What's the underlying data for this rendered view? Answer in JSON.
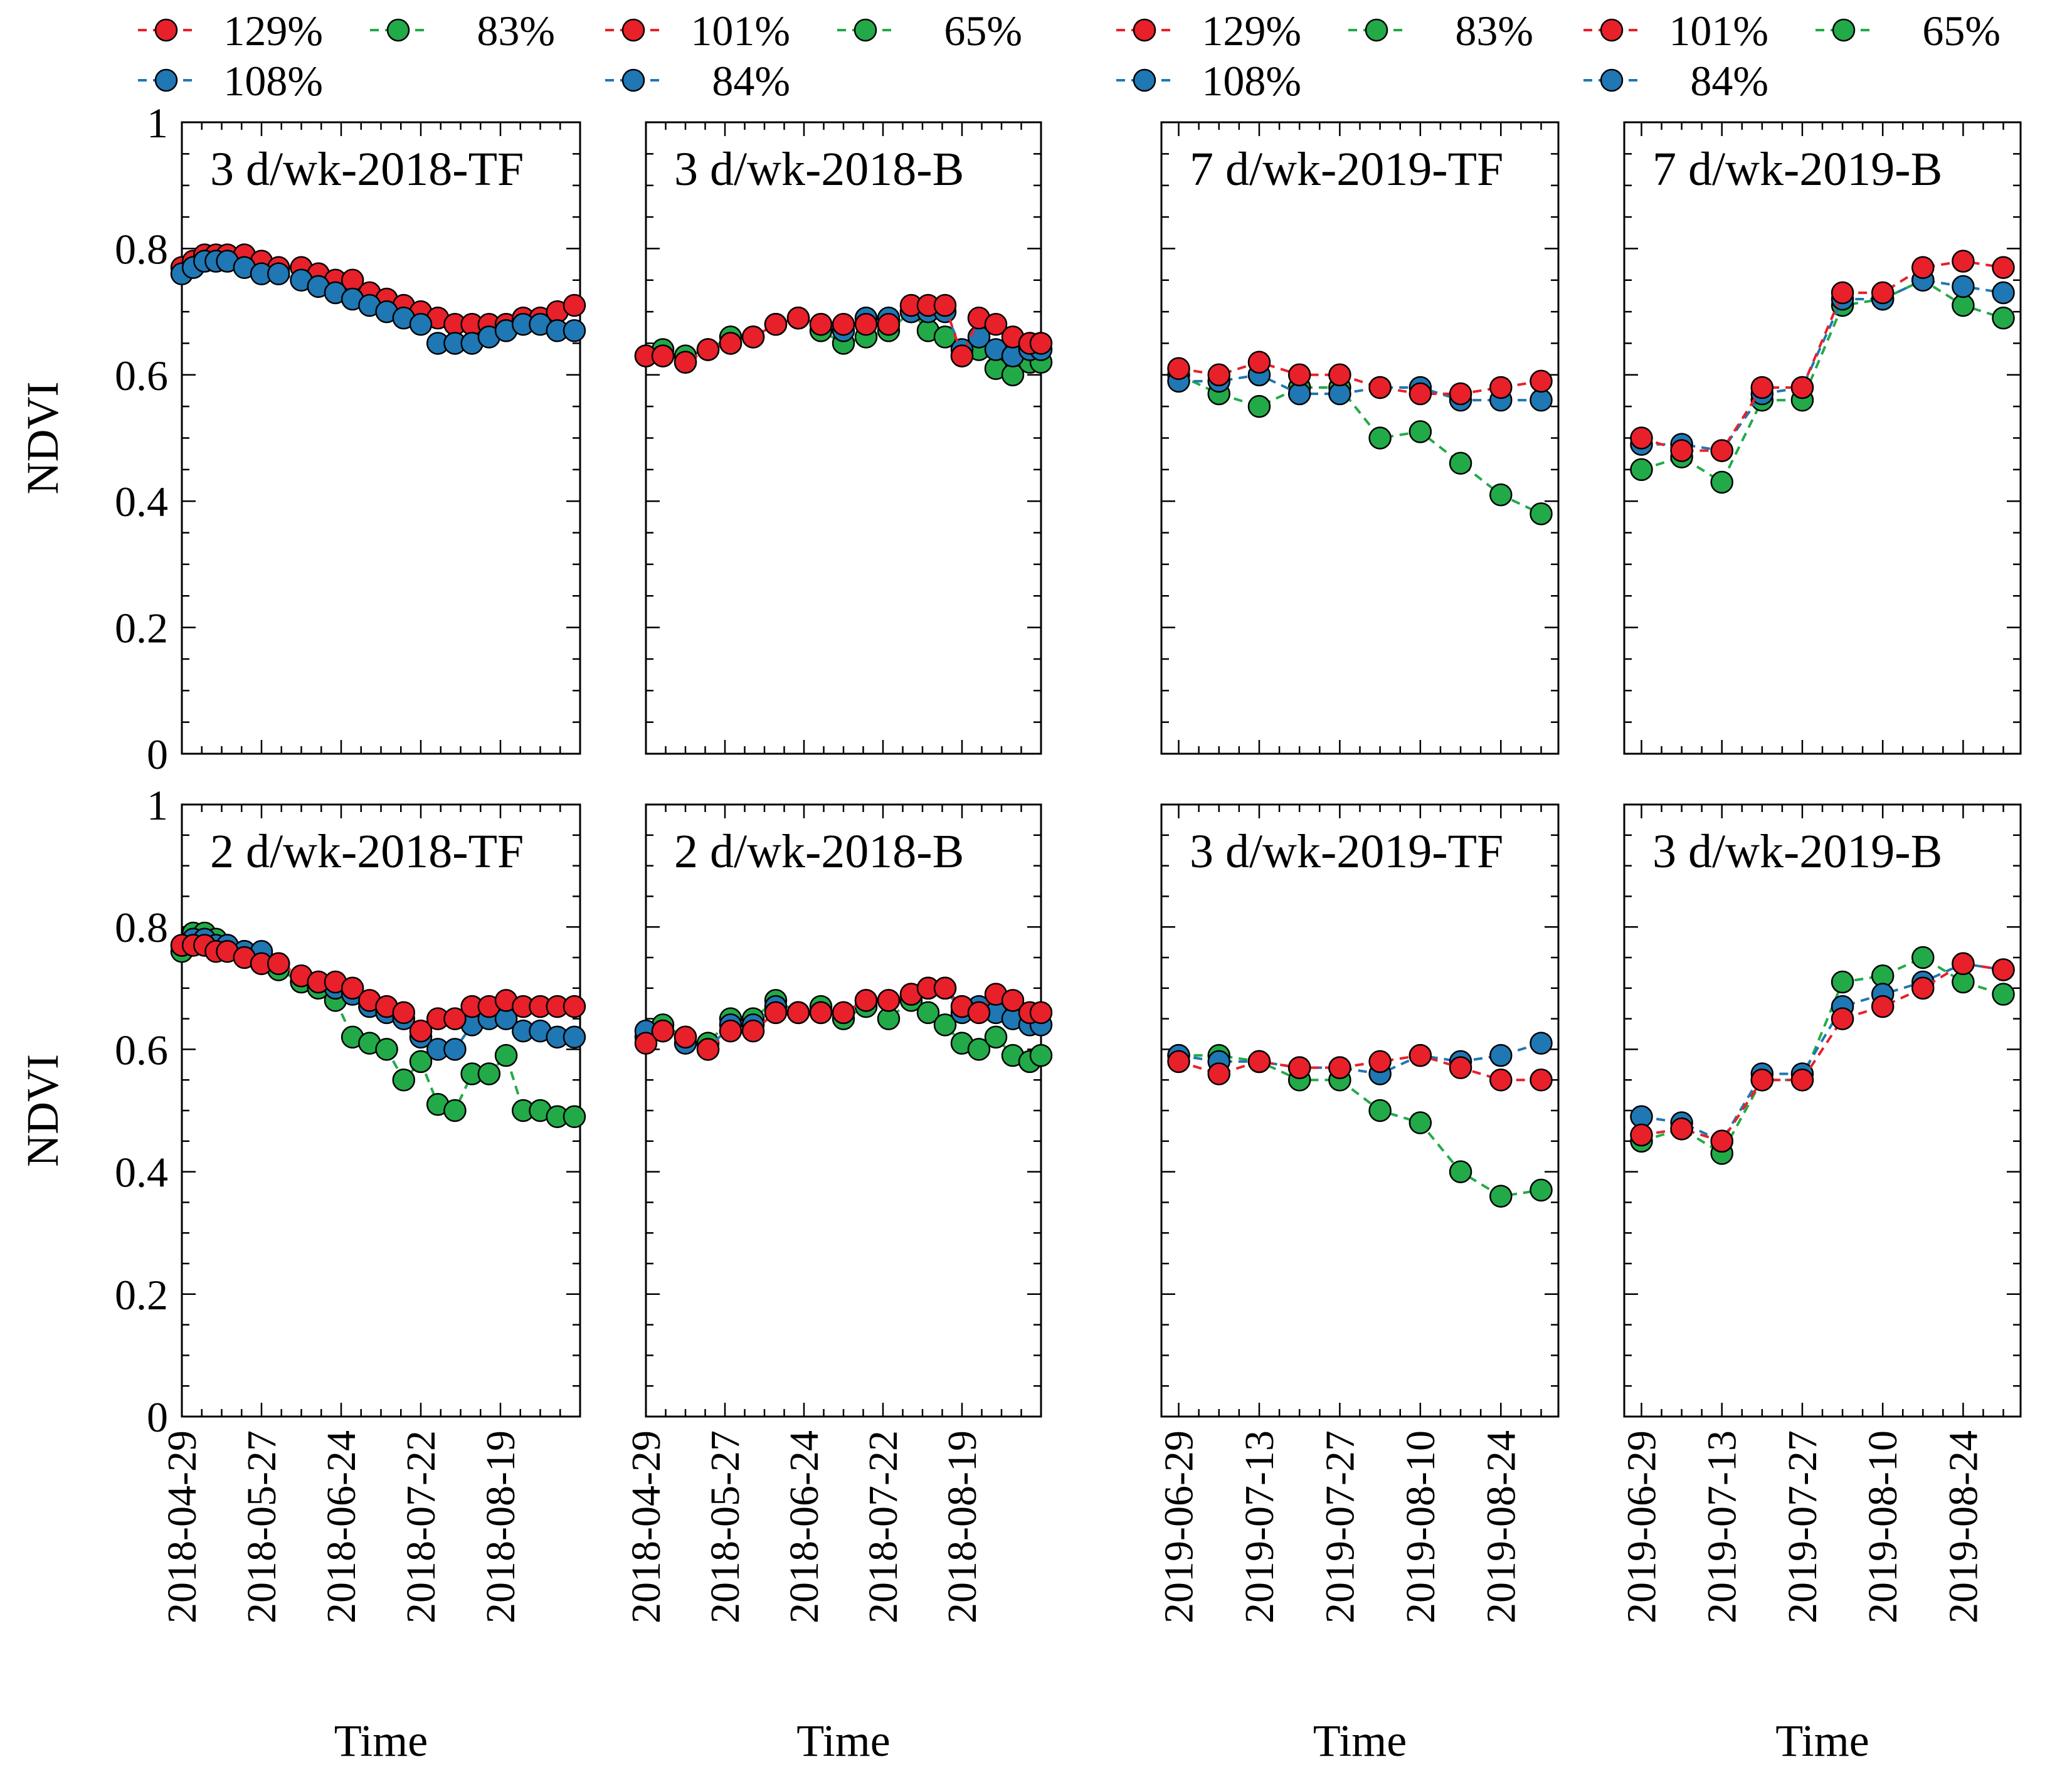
{
  "colors": {
    "red": "#e8202a",
    "green": "#22aa48",
    "blue": "#1f77b4",
    "axis": "#000000"
  },
  "legend_groups": [
    {
      "entries": [
        {
          "label": "129%",
          "color": "red"
        },
        {
          "label": "83%",
          "color": "green"
        },
        {
          "label": "101%",
          "color": "red"
        },
        {
          "label": "65%",
          "color": "green"
        },
        {
          "label": "108%",
          "color": "blue"
        },
        {
          "label": "84%",
          "color": "blue"
        }
      ]
    },
    {
      "entries": [
        {
          "label": "129%",
          "color": "red"
        },
        {
          "label": "83%",
          "color": "green"
        },
        {
          "label": "101%",
          "color": "red"
        },
        {
          "label": "65%",
          "color": "green"
        },
        {
          "label": "108%",
          "color": "blue"
        },
        {
          "label": "84%",
          "color": "blue"
        }
      ]
    }
  ],
  "chart_data": [
    {
      "type": "line",
      "title": "3 d/wk-2018-TF",
      "ylabel": "NDVI",
      "xlabel": "",
      "ylim": [
        0,
        1
      ],
      "yticks": [
        0,
        0.2,
        0.4,
        0.6,
        0.8,
        1
      ],
      "ytick_labels": [
        "0",
        "0.2",
        "0.4",
        "0.6",
        "0.8",
        "1"
      ],
      "xlim": [
        0,
        140
      ],
      "xticks": [
        0,
        28,
        56,
        84,
        112
      ],
      "xtick_labels": [
        "2018-04-29",
        "2018-05-27",
        "2018-06-24",
        "2018-07-22",
        "2018-08-19"
      ],
      "x": [
        0,
        4,
        8,
        12,
        16,
        22,
        28,
        34,
        42,
        48,
        54,
        60,
        66,
        72,
        78,
        84,
        90,
        96,
        102,
        108,
        114,
        120,
        126,
        132,
        138
      ],
      "series": [
        {
          "name": "129%",
          "color": "red",
          "values": [
            0.77,
            0.78,
            0.79,
            0.79,
            0.79,
            0.79,
            0.78,
            0.77,
            0.77,
            0.76,
            0.75,
            0.75,
            0.73,
            0.72,
            0.71,
            0.7,
            0.69,
            0.68,
            0.68,
            0.68,
            0.68,
            0.69,
            0.69,
            0.7,
            0.71
          ]
        },
        {
          "name": "108%",
          "color": "blue",
          "values": [
            0.76,
            0.77,
            0.78,
            0.78,
            0.78,
            0.77,
            0.76,
            0.76,
            0.75,
            0.74,
            0.73,
            0.72,
            0.71,
            0.7,
            0.69,
            0.68,
            0.65,
            0.65,
            0.65,
            0.66,
            0.67,
            0.68,
            0.68,
            0.67,
            0.67
          ]
        }
      ]
    },
    {
      "type": "line",
      "title": "3 d/wk-2018-B",
      "ylabel": "",
      "xlabel": "",
      "ylim": [
        0,
        1
      ],
      "yticks": [
        0,
        0.2,
        0.4,
        0.6,
        0.8,
        1
      ],
      "ytick_labels": [],
      "xlim": [
        0,
        140
      ],
      "xticks": [
        0,
        28,
        56,
        84,
        112
      ],
      "xtick_labels": [
        "2018-04-29",
        "2018-05-27",
        "2018-06-24",
        "2018-07-22",
        "2018-08-19"
      ],
      "x": [
        0,
        6,
        14,
        22,
        30,
        38,
        46,
        54,
        62,
        70,
        78,
        86,
        94,
        100,
        106,
        112,
        118,
        124,
        130,
        136,
        140
      ],
      "series": [
        {
          "name": "65%",
          "color": "green",
          "values": [
            0.63,
            0.64,
            0.63,
            0.64,
            0.66,
            0.66,
            0.68,
            0.69,
            0.67,
            0.65,
            0.66,
            0.67,
            0.7,
            0.67,
            0.66,
            0.63,
            0.64,
            0.61,
            0.6,
            0.62,
            0.62
          ]
        },
        {
          "name": "84%",
          "color": "blue",
          "values": [
            0.63,
            0.63,
            0.62,
            0.64,
            0.65,
            0.66,
            0.68,
            0.69,
            0.68,
            0.67,
            0.69,
            0.69,
            0.7,
            0.7,
            0.7,
            0.64,
            0.66,
            0.64,
            0.63,
            0.64,
            0.64
          ]
        },
        {
          "name": "101%",
          "color": "red",
          "values": [
            0.63,
            0.63,
            0.62,
            0.64,
            0.65,
            0.66,
            0.68,
            0.69,
            0.68,
            0.68,
            0.68,
            0.68,
            0.71,
            0.71,
            0.71,
            0.63,
            0.69,
            0.68,
            0.66,
            0.65,
            0.65
          ]
        }
      ]
    },
    {
      "type": "line",
      "title": "7 d/wk-2019-TF",
      "ylabel": "",
      "xlabel": "",
      "ylim": [
        0,
        1
      ],
      "yticks": [
        0,
        0.2,
        0.4,
        0.6,
        0.8,
        1
      ],
      "ytick_labels": [],
      "xlim": [
        -3,
        66
      ],
      "xticks": [
        0,
        14,
        28,
        42,
        56
      ],
      "xtick_labels": [
        "2019-06-29",
        "2019-07-13",
        "2019-07-27",
        "2019-08-10",
        "2019-08-24"
      ],
      "x": [
        0,
        7,
        14,
        21,
        28,
        35,
        42,
        49,
        56,
        63
      ],
      "series": [
        {
          "name": "83%",
          "color": "green",
          "values": [
            0.6,
            0.57,
            0.55,
            0.58,
            0.58,
            0.5,
            0.51,
            0.46,
            0.41,
            0.38
          ]
        },
        {
          "name": "108%",
          "color": "blue",
          "values": [
            0.59,
            0.59,
            0.6,
            0.57,
            0.57,
            0.58,
            0.58,
            0.56,
            0.56,
            0.56
          ]
        },
        {
          "name": "129%",
          "color": "red",
          "values": [
            0.61,
            0.6,
            0.62,
            0.6,
            0.6,
            0.58,
            0.57,
            0.57,
            0.58,
            0.59
          ]
        }
      ]
    },
    {
      "type": "line",
      "title": "7 d/wk-2019-B",
      "ylabel": "",
      "xlabel": "",
      "ylim": [
        0,
        1
      ],
      "yticks": [
        0,
        0.2,
        0.4,
        0.6,
        0.8,
        1
      ],
      "ytick_labels": [],
      "xlim": [
        -3,
        66
      ],
      "xticks": [
        0,
        14,
        28,
        42,
        56
      ],
      "xtick_labels": [
        "2019-06-29",
        "2019-07-13",
        "2019-07-27",
        "2019-08-10",
        "2019-08-24"
      ],
      "x": [
        0,
        7,
        14,
        21,
        28,
        35,
        42,
        49,
        56,
        63
      ],
      "series": [
        {
          "name": "65%",
          "color": "green",
          "values": [
            0.45,
            0.47,
            0.43,
            0.56,
            0.56,
            0.71,
            0.72,
            0.75,
            0.71,
            0.69
          ]
        },
        {
          "name": "84%",
          "color": "blue",
          "values": [
            0.49,
            0.49,
            0.48,
            0.57,
            0.58,
            0.72,
            0.72,
            0.75,
            0.74,
            0.73
          ]
        },
        {
          "name": "101%",
          "color": "red",
          "values": [
            0.5,
            0.48,
            0.48,
            0.58,
            0.58,
            0.73,
            0.73,
            0.77,
            0.78,
            0.77
          ]
        }
      ]
    },
    {
      "type": "line",
      "title": "2 d/wk-2018-TF",
      "ylabel": "NDVI",
      "xlabel": "Time",
      "ylim": [
        0,
        1
      ],
      "yticks": [
        0,
        0.2,
        0.4,
        0.6,
        0.8,
        1
      ],
      "ytick_labels": [
        "0",
        "0.2",
        "0.4",
        "0.6",
        "0.8",
        "1"
      ],
      "xlim": [
        0,
        140
      ],
      "xticks": [
        0,
        28,
        56,
        84,
        112
      ],
      "xtick_labels": [
        "2018-04-29",
        "2018-05-27",
        "2018-06-24",
        "2018-07-22",
        "2018-08-19"
      ],
      "x": [
        0,
        4,
        8,
        12,
        16,
        22,
        28,
        34,
        42,
        48,
        54,
        60,
        66,
        72,
        78,
        84,
        90,
        96,
        102,
        108,
        114,
        120,
        126,
        132,
        138
      ],
      "series": [
        {
          "name": "83%",
          "color": "green",
          "values": [
            0.76,
            0.79,
            0.79,
            0.78,
            0.77,
            0.76,
            0.74,
            0.73,
            0.71,
            0.7,
            0.68,
            0.62,
            0.61,
            0.6,
            0.55,
            0.58,
            0.51,
            0.5,
            0.56,
            0.56,
            0.59,
            0.5,
            0.5,
            0.49,
            0.49
          ]
        },
        {
          "name": "108%",
          "color": "blue",
          "values": [
            0.77,
            0.78,
            0.78,
            0.77,
            0.77,
            0.76,
            0.76,
            0.74,
            0.72,
            0.71,
            0.7,
            0.69,
            0.67,
            0.66,
            0.65,
            0.62,
            0.6,
            0.6,
            0.64,
            0.65,
            0.65,
            0.63,
            0.63,
            0.62,
            0.62
          ]
        },
        {
          "name": "129%",
          "color": "red",
          "values": [
            0.77,
            0.77,
            0.77,
            0.76,
            0.76,
            0.75,
            0.74,
            0.74,
            0.72,
            0.71,
            0.71,
            0.7,
            0.68,
            0.67,
            0.66,
            0.63,
            0.65,
            0.65,
            0.67,
            0.67,
            0.68,
            0.67,
            0.67,
            0.67,
            0.67
          ]
        }
      ]
    },
    {
      "type": "line",
      "title": "2 d/wk-2018-B",
      "ylabel": "",
      "xlabel": "Time",
      "ylim": [
        0,
        1
      ],
      "yticks": [
        0,
        0.2,
        0.4,
        0.6,
        0.8,
        1
      ],
      "ytick_labels": [],
      "xlim": [
        0,
        140
      ],
      "xticks": [
        0,
        28,
        56,
        84,
        112
      ],
      "xtick_labels": [
        "2018-04-29",
        "2018-05-27",
        "2018-06-24",
        "2018-07-22",
        "2018-08-19"
      ],
      "x": [
        0,
        6,
        14,
        22,
        30,
        38,
        46,
        54,
        62,
        70,
        78,
        86,
        94,
        100,
        106,
        112,
        118,
        124,
        130,
        136,
        140
      ],
      "series": [
        {
          "name": "65%",
          "color": "green",
          "values": [
            0.62,
            0.64,
            0.62,
            0.61,
            0.65,
            0.65,
            0.68,
            0.66,
            0.67,
            0.65,
            0.67,
            0.65,
            0.68,
            0.66,
            0.64,
            0.61,
            0.6,
            0.62,
            0.59,
            0.58,
            0.59
          ]
        },
        {
          "name": "84%",
          "color": "blue",
          "values": [
            0.63,
            0.63,
            0.61,
            0.6,
            0.64,
            0.64,
            0.67,
            0.66,
            0.66,
            0.66,
            0.68,
            0.68,
            0.69,
            0.7,
            0.7,
            0.66,
            0.67,
            0.66,
            0.65,
            0.64,
            0.64
          ]
        },
        {
          "name": "101%",
          "color": "red",
          "values": [
            0.61,
            0.63,
            0.62,
            0.6,
            0.63,
            0.63,
            0.66,
            0.66,
            0.66,
            0.66,
            0.68,
            0.68,
            0.69,
            0.7,
            0.7,
            0.67,
            0.66,
            0.69,
            0.68,
            0.66,
            0.66
          ]
        }
      ]
    },
    {
      "type": "line",
      "title": "3 d/wk-2019-TF",
      "ylabel": "",
      "xlabel": "Time",
      "ylim": [
        0,
        1
      ],
      "yticks": [
        0,
        0.2,
        0.4,
        0.6,
        0.8,
        1
      ],
      "ytick_labels": [],
      "xlim": [
        -3,
        66
      ],
      "xticks": [
        0,
        14,
        28,
        42,
        56
      ],
      "xtick_labels": [
        "2019-06-29",
        "2019-07-13",
        "2019-07-27",
        "2019-08-10",
        "2019-08-24"
      ],
      "x": [
        0,
        7,
        14,
        21,
        28,
        35,
        42,
        49,
        56,
        63
      ],
      "series": [
        {
          "name": "83%",
          "color": "green",
          "values": [
            0.59,
            0.59,
            0.58,
            0.55,
            0.55,
            0.5,
            0.48,
            0.4,
            0.36,
            0.37
          ]
        },
        {
          "name": "108%",
          "color": "blue",
          "values": [
            0.59,
            0.58,
            0.58,
            0.57,
            0.57,
            0.56,
            0.59,
            0.58,
            0.59,
            0.61
          ]
        },
        {
          "name": "129%",
          "color": "red",
          "values": [
            0.58,
            0.56,
            0.58,
            0.57,
            0.57,
            0.58,
            0.59,
            0.57,
            0.55,
            0.55
          ]
        }
      ]
    },
    {
      "type": "line",
      "title": "3 d/wk-2019-B",
      "ylabel": "",
      "xlabel": "Time",
      "ylim": [
        0,
        1
      ],
      "yticks": [
        0,
        0.2,
        0.4,
        0.6,
        0.8,
        1
      ],
      "ytick_labels": [],
      "xlim": [
        -3,
        66
      ],
      "xticks": [
        0,
        14,
        28,
        42,
        56
      ],
      "xtick_labels": [
        "2019-06-29",
        "2019-07-13",
        "2019-07-27",
        "2019-08-10",
        "2019-08-24"
      ],
      "x": [
        0,
        7,
        14,
        21,
        28,
        35,
        42,
        49,
        56,
        63
      ],
      "series": [
        {
          "name": "65%",
          "color": "green",
          "values": [
            0.45,
            0.47,
            0.43,
            0.55,
            0.55,
            0.71,
            0.72,
            0.75,
            0.71,
            0.69
          ]
        },
        {
          "name": "84%",
          "color": "blue",
          "values": [
            0.49,
            0.48,
            0.45,
            0.56,
            0.56,
            0.67,
            0.69,
            0.71,
            0.74,
            0.73
          ]
        },
        {
          "name": "101%",
          "color": "red",
          "values": [
            0.46,
            0.47,
            0.45,
            0.55,
            0.55,
            0.65,
            0.67,
            0.7,
            0.74,
            0.73
          ]
        }
      ]
    }
  ]
}
